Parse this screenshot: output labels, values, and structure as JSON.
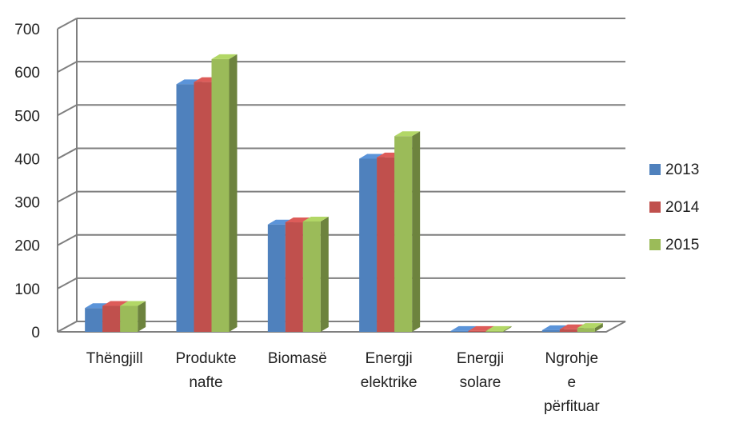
{
  "chart_data": {
    "type": "bar",
    "title": "",
    "xlabel": "",
    "ylabel": "",
    "categories": [
      [
        "Thëngjill"
      ],
      [
        "Produkte",
        "nafte"
      ],
      [
        "Biomasë"
      ],
      [
        "Energji",
        "elektrike"
      ],
      [
        "Energji",
        "solare"
      ],
      [
        "Ngrohje",
        "e",
        "përfituar"
      ]
    ],
    "series": [
      {
        "name": "2013",
        "color": "#4F81BD",
        "values": [
          55,
          572,
          248,
          400,
          2,
          4
        ]
      },
      {
        "name": "2014",
        "color": "#C0504D",
        "values": [
          60,
          577,
          253,
          403,
          2,
          6
        ]
      },
      {
        "name": "2015",
        "color": "#9BBB59",
        "values": [
          60,
          630,
          255,
          452,
          2,
          9
        ]
      }
    ],
    "ylim": [
      0,
      700
    ],
    "yticks": [
      "0",
      "100",
      "200",
      "300",
      "400",
      "500",
      "600",
      "700"
    ],
    "grid": true,
    "legend": "right",
    "style": "3d-clustered-column"
  }
}
